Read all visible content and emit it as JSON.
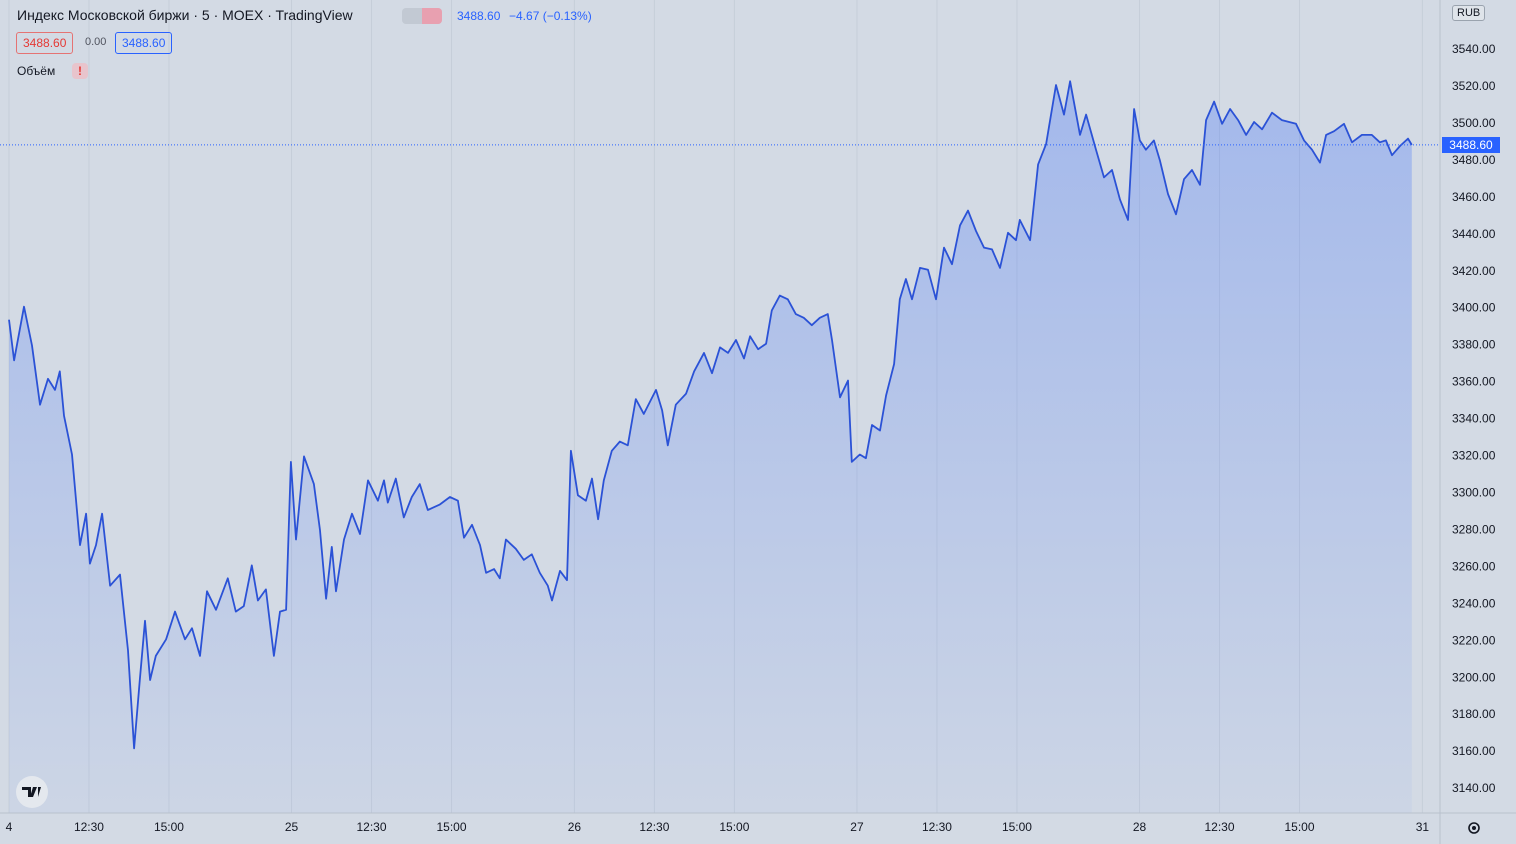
{
  "chart_data": {
    "type": "area",
    "title": "Индекс Московской биржи · 5 · MOEX · TradingView",
    "price": "3488.60",
    "change": "−4.67 (−0.13%)",
    "bid": "3488.60",
    "spread": "0.00",
    "ask": "3488.60",
    "volume_label": "Объём",
    "currency": "RUB",
    "last_label": "3488.60",
    "color": "#2b52d6",
    "x": [
      0,
      0.16,
      0.47,
      0.72,
      0.97,
      1.22,
      1.44,
      1.59,
      1.72,
      1.97,
      2.22,
      2.41,
      2.53,
      2.72,
      2.91,
      3.16,
      3.47,
      3.72,
      3.91,
      4.09,
      4.25,
      4.41,
      4.59,
      4.91,
      5.19,
      5.5,
      5.72,
      5.97,
      6.19,
      6.47,
      6.84,
      7.09,
      7.34,
      7.59,
      7.78,
      8.03,
      8.28,
      8.47,
      8.66,
      8.81,
      8.97,
      9.22,
      9.53,
      9.72,
      9.91,
      10.09,
      10.22,
      10.47,
      10.72,
      10.97,
      11.22,
      11.53,
      11.72,
      11.84,
      12.09,
      12.34,
      12.59,
      12.84,
      13.09,
      13.47,
      13.78,
      14.03,
      14.22,
      14.47,
      14.72,
      14.91,
      15.16,
      15.34,
      15.53,
      15.84,
      16.09,
      16.34,
      16.59,
      16.84,
      16.97,
      17.22,
      17.44,
      17.56,
      17.78,
      18.03,
      18.22,
      18.41,
      18.59,
      18.84,
      19.09,
      19.34,
      19.59,
      19.84,
      20.22,
      20.41,
      20.59,
      20.84,
      21.16,
      21.41,
      21.72,
      21.97,
      22.22,
      22.47,
      22.72,
      22.97,
      23.16,
      23.41,
      23.66,
      23.84,
      24.09,
      24.34,
      24.59,
      24.84,
      25.09,
      25.34,
      25.59,
      25.72,
      25.97,
      26.22,
      26.34,
      26.59,
      26.78,
      26.97,
      27.22,
      27.41,
      27.66,
      27.84,
      28.03,
      28.22,
      28.47,
      28.72,
      28.97,
      29.22,
      29.47,
      29.72,
      29.97,
      30.22,
      30.47,
      30.72,
      30.97,
      31.22,
      31.47,
      31.59,
      31.91,
      32.16,
      32.41,
      32.72,
      32.97,
      33.16,
      33.47,
      33.66,
      33.97,
      34.22,
      34.47,
      34.72,
      34.97,
      35.16,
      35.34,
      35.53,
      35.78,
      35.97,
      36.22,
      36.47,
      36.72,
      36.97,
      37.22,
      37.41,
      37.66,
      37.91,
      38.16,
      38.41,
      38.66,
      38.91,
      39.16,
      39.47,
      39.78,
      40.22,
      40.47,
      40.72,
      40.97,
      41.16,
      41.41,
      41.72,
      41.97,
      42.28,
      42.59,
      42.84,
      43.03,
      43.22,
      43.47,
      43.72,
      43.84
    ],
    "values": [
      3394,
      3372,
      3401,
      3380,
      3348,
      3362,
      3356,
      3366,
      3342,
      3321,
      3272,
      3289,
      3262,
      3272,
      3289,
      3250,
      3256,
      3215,
      3162,
      3199,
      3231,
      3199,
      3212,
      3221,
      3236,
      3221,
      3227,
      3212,
      3247,
      3237,
      3254,
      3236,
      3239,
      3261,
      3242,
      3248,
      3212,
      3236,
      3237,
      3317,
      3275,
      3320,
      3305,
      3280,
      3243,
      3271,
      3247,
      3275,
      3289,
      3278,
      3307,
      3296,
      3307,
      3295,
      3308,
      3287,
      3298,
      3305,
      3291,
      3294,
      3298,
      3296,
      3276,
      3283,
      3272,
      3257,
      3259,
      3254,
      3275,
      3270,
      3264,
      3267,
      3257,
      3250,
      3242,
      3258,
      3253,
      3323,
      3299,
      3296,
      3308,
      3286,
      3307,
      3323,
      3328,
      3326,
      3351,
      3343,
      3356,
      3345,
      3326,
      3348,
      3354,
      3366,
      3376,
      3365,
      3379,
      3376,
      3383,
      3373,
      3385,
      3378,
      3381,
      3399,
      3407,
      3405,
      3397,
      3395,
      3391,
      3395,
      3397,
      3383,
      3352,
      3361,
      3317,
      3321,
      3319,
      3337,
      3334,
      3353,
      3370,
      3405,
      3416,
      3405,
      3422,
      3421,
      3405,
      3433,
      3424,
      3445,
      3453,
      3442,
      3433,
      3432,
      3422,
      3441,
      3437,
      3448,
      3437,
      3478,
      3489,
      3521,
      3505,
      3523,
      3494,
      3505,
      3486,
      3471,
      3475,
      3459,
      3448,
      3508,
      3491,
      3486,
      3491,
      3480,
      3462,
      3451,
      3470,
      3475,
      3467,
      3502,
      3512,
      3500,
      3508,
      3502,
      3494,
      3501,
      3497,
      3506,
      3502,
      3500,
      3491,
      3486,
      3479,
      3494,
      3496,
      3500,
      3490,
      3494,
      3494,
      3490,
      3491,
      3483,
      3488,
      3492,
      3488.6
    ],
    "xlim": [
      -0.28,
      44.72
    ],
    "xticks": [
      {
        "value": 0,
        "label": "4"
      },
      {
        "value": 2.5,
        "label": "12:30"
      },
      {
        "value": 5,
        "label": "15:00"
      },
      {
        "value": 8.83,
        "label": "25"
      },
      {
        "value": 11.33,
        "label": "12:30"
      },
      {
        "value": 13.83,
        "label": "15:00"
      },
      {
        "value": 17.67,
        "label": "26"
      },
      {
        "value": 20.17,
        "label": "12:30"
      },
      {
        "value": 22.67,
        "label": "15:00"
      },
      {
        "value": 26.5,
        "label": "27"
      },
      {
        "value": 29,
        "label": "12:30"
      },
      {
        "value": 31.5,
        "label": "15:00"
      },
      {
        "value": 35.33,
        "label": "28"
      },
      {
        "value": 37.83,
        "label": "12:30"
      },
      {
        "value": 40.33,
        "label": "15:00"
      },
      {
        "value": 44.17,
        "label": "31"
      }
    ],
    "ylim": [
      3127,
      3567
    ],
    "yticks": [
      {
        "value": 3140,
        "label": "3140.00"
      },
      {
        "value": 3160,
        "label": "3160.00"
      },
      {
        "value": 3180,
        "label": "3180.00"
      },
      {
        "value": 3200,
        "label": "3200.00"
      },
      {
        "value": 3220,
        "label": "3220.00"
      },
      {
        "value": 3240,
        "label": "3240.00"
      },
      {
        "value": 3260,
        "label": "3260.00"
      },
      {
        "value": 3280,
        "label": "3280.00"
      },
      {
        "value": 3300,
        "label": "3300.00"
      },
      {
        "value": 3320,
        "label": "3320.00"
      },
      {
        "value": 3340,
        "label": "3340.00"
      },
      {
        "value": 3360,
        "label": "3360.00"
      },
      {
        "value": 3380,
        "label": "3380.00"
      },
      {
        "value": 3400,
        "label": "3400.00"
      },
      {
        "value": 3420,
        "label": "3420.00"
      },
      {
        "value": 3440,
        "label": "3440.00"
      },
      {
        "value": 3460,
        "label": "3460.00"
      },
      {
        "value": 3480,
        "label": "3480.00"
      },
      {
        "value": 3500,
        "label": "3500.00"
      },
      {
        "value": 3520,
        "label": "3520.00"
      },
      {
        "value": 3540,
        "label": "3540.00"
      }
    ],
    "grid": true
  }
}
